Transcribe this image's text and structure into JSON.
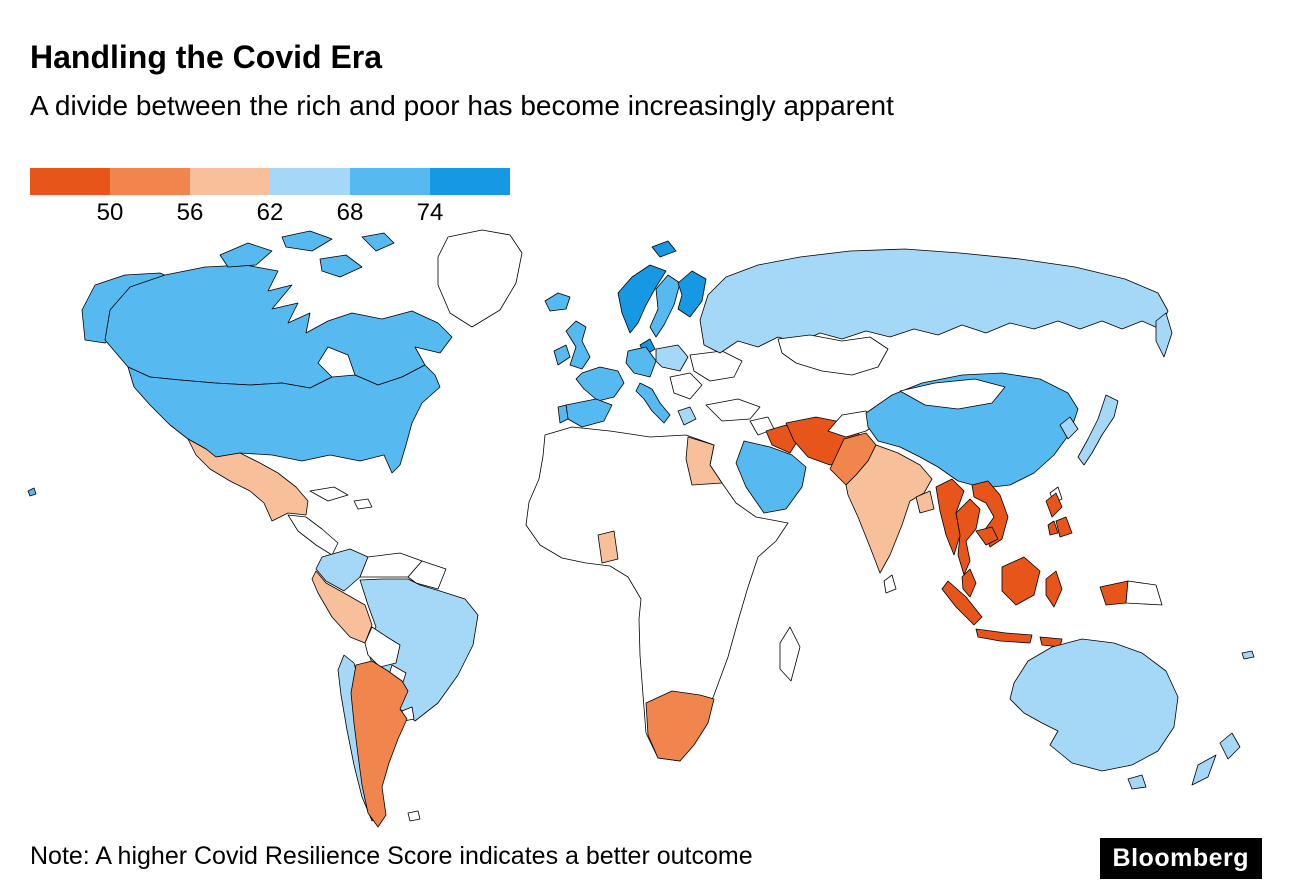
{
  "header": {
    "title": "Handling the Covid Era",
    "subtitle": "A divide between the rich and poor has become increasingly apparent"
  },
  "footer": {
    "note": "Note: A higher Covid Resilience Score indicates a better outcome",
    "brand": "Bloomberg"
  },
  "chart_data": {
    "type": "choropleth",
    "title": "Handling the Covid Era",
    "subtitle": "A divide between the rich and poor has become increasingly apparent",
    "metric": "Covid Resilience Score",
    "note": "Note: A higher Covid Resilience Score indicates a better outcome",
    "legend": {
      "position": "top-left",
      "tick_labels": [
        "50",
        "56",
        "62",
        "68",
        "74"
      ],
      "buckets": [
        {
          "id": "b1",
          "range": "<50",
          "color": "#e8551a"
        },
        {
          "id": "b2",
          "range": "50-56",
          "color": "#f0854d"
        },
        {
          "id": "b3",
          "range": "56-62",
          "color": "#f7c09a"
        },
        {
          "id": "b4",
          "range": "62-68",
          "color": "#a5d8f6"
        },
        {
          "id": "b5",
          "range": "68-74",
          "color": "#56b9f0"
        },
        {
          "id": "b6",
          "range": ">74",
          "color": "#1699e2"
        }
      ],
      "no_data_color": "#ffffff"
    },
    "countries": [
      {
        "id": "canada",
        "name": "Canada",
        "bucket": "b5"
      },
      {
        "id": "usa",
        "name": "United States",
        "bucket": "b5"
      },
      {
        "id": "mexico",
        "name": "Mexico",
        "bucket": "b3"
      },
      {
        "id": "colombia",
        "name": "Colombia",
        "bucket": "b4"
      },
      {
        "id": "peru",
        "name": "Peru",
        "bucket": "b3"
      },
      {
        "id": "brazil",
        "name": "Brazil",
        "bucket": "b4"
      },
      {
        "id": "chile",
        "name": "Chile",
        "bucket": "b4"
      },
      {
        "id": "argentina",
        "name": "Argentina",
        "bucket": "b2"
      },
      {
        "id": "iceland",
        "name": "Iceland",
        "bucket": "b5"
      },
      {
        "id": "uk",
        "name": "United Kingdom",
        "bucket": "b5"
      },
      {
        "id": "ireland",
        "name": "Ireland",
        "bucket": "b5"
      },
      {
        "id": "norway",
        "name": "Norway",
        "bucket": "b6"
      },
      {
        "id": "sweden",
        "name": "Sweden",
        "bucket": "b5"
      },
      {
        "id": "finland",
        "name": "Finland",
        "bucket": "b6"
      },
      {
        "id": "denmark",
        "name": "Denmark",
        "bucket": "b6"
      },
      {
        "id": "france",
        "name": "France",
        "bucket": "b5"
      },
      {
        "id": "spain",
        "name": "Spain",
        "bucket": "b5"
      },
      {
        "id": "portugal",
        "name": "Portugal",
        "bucket": "b5"
      },
      {
        "id": "germany",
        "name": "Germany",
        "bucket": "b5"
      },
      {
        "id": "poland",
        "name": "Poland",
        "bucket": "b4"
      },
      {
        "id": "italy",
        "name": "Italy",
        "bucket": "b5"
      },
      {
        "id": "greece",
        "name": "Greece",
        "bucket": "b4"
      },
      {
        "id": "russia",
        "name": "Russia",
        "bucket": "b4"
      },
      {
        "id": "china",
        "name": "China",
        "bucket": "b5"
      },
      {
        "id": "japan",
        "name": "Japan",
        "bucket": "b4"
      },
      {
        "id": "south-korea",
        "name": "South Korea",
        "bucket": "b4"
      },
      {
        "id": "india",
        "name": "India",
        "bucket": "b3"
      },
      {
        "id": "pakistan",
        "name": "Pakistan",
        "bucket": "b2"
      },
      {
        "id": "bangladesh",
        "name": "Bangladesh",
        "bucket": "b3"
      },
      {
        "id": "iran",
        "name": "Iran",
        "bucket": "b1"
      },
      {
        "id": "iraq",
        "name": "Iraq",
        "bucket": "b1"
      },
      {
        "id": "saudi-arabia",
        "name": "Saudi Arabia",
        "bucket": "b5"
      },
      {
        "id": "egypt",
        "name": "Egypt",
        "bucket": "b3"
      },
      {
        "id": "ghana",
        "name": "Ghana",
        "bucket": "b3"
      },
      {
        "id": "south-africa",
        "name": "South Africa",
        "bucket": "b2"
      },
      {
        "id": "myanmar",
        "name": "Myanmar",
        "bucket": "b1"
      },
      {
        "id": "thailand",
        "name": "Thailand",
        "bucket": "b1"
      },
      {
        "id": "vietnam",
        "name": "Vietnam",
        "bucket": "b1"
      },
      {
        "id": "cambodia",
        "name": "Cambodia",
        "bucket": "b1"
      },
      {
        "id": "malaysia",
        "name": "Malaysia",
        "bucket": "b1"
      },
      {
        "id": "indonesia",
        "name": "Indonesia",
        "bucket": "b1"
      },
      {
        "id": "philippines",
        "name": "Philippines",
        "bucket": "b1"
      },
      {
        "id": "australia",
        "name": "Australia",
        "bucket": "b4"
      },
      {
        "id": "new-zealand",
        "name": "New Zealand",
        "bucket": "b4"
      },
      {
        "id": "new-caledonia",
        "name": "New Caledonia",
        "bucket": "b4"
      }
    ]
  }
}
